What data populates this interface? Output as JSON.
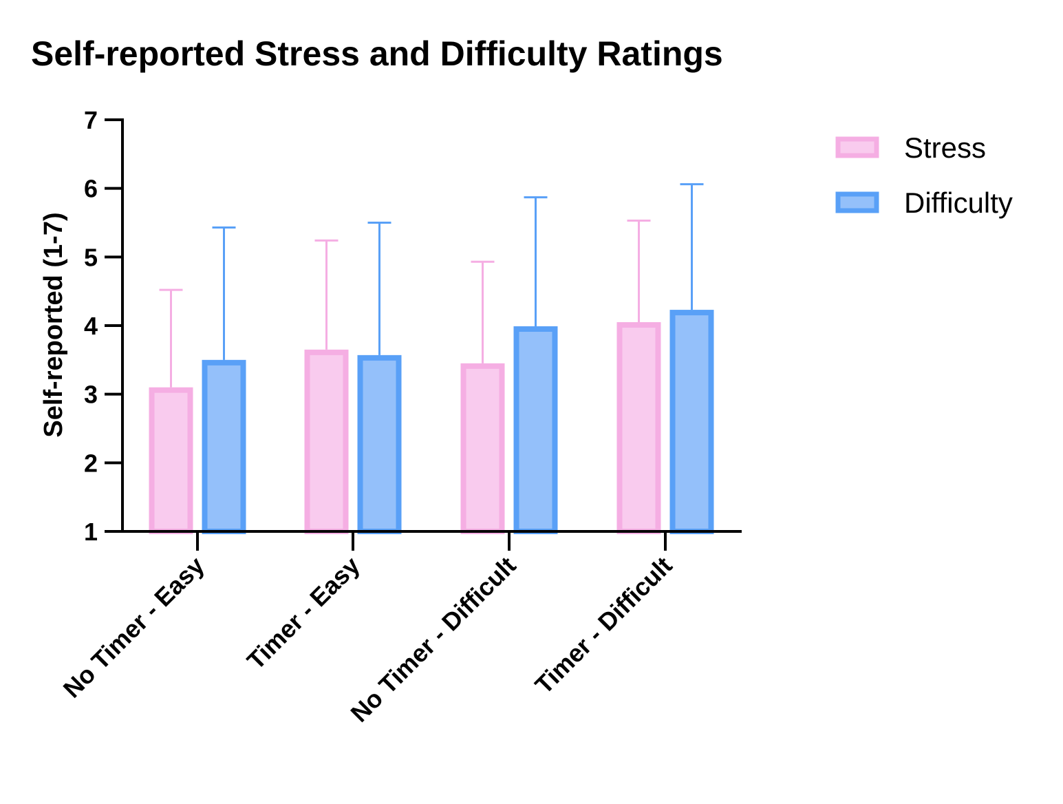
{
  "chart_data": {
    "type": "bar",
    "title": "Self-reported Stress and Difficulty Ratings",
    "xlabel": "",
    "ylabel": "Self-reported (1-7)",
    "ylim": [
      1,
      7
    ],
    "yticks": [
      1,
      2,
      3,
      4,
      5,
      6,
      7
    ],
    "categories": [
      "No Timer - Easy",
      "Timer - Easy",
      "No Timer - Difficult",
      "Timer - Difficult"
    ],
    "series": [
      {
        "name": "Stress",
        "values": [
          3.1,
          3.65,
          3.45,
          4.05
        ],
        "error_upper": [
          4.52,
          5.24,
          4.93,
          5.53
        ],
        "fill": "#f9cbee",
        "stroke": "#f5aee3"
      },
      {
        "name": "Difficulty",
        "values": [
          3.5,
          3.57,
          3.99,
          4.23
        ],
        "error_upper": [
          5.43,
          5.5,
          5.87,
          6.06
        ],
        "fill": "#94c0fa",
        "stroke": "#59a0f7"
      }
    ],
    "legend_position": "top-right",
    "grid": false
  }
}
